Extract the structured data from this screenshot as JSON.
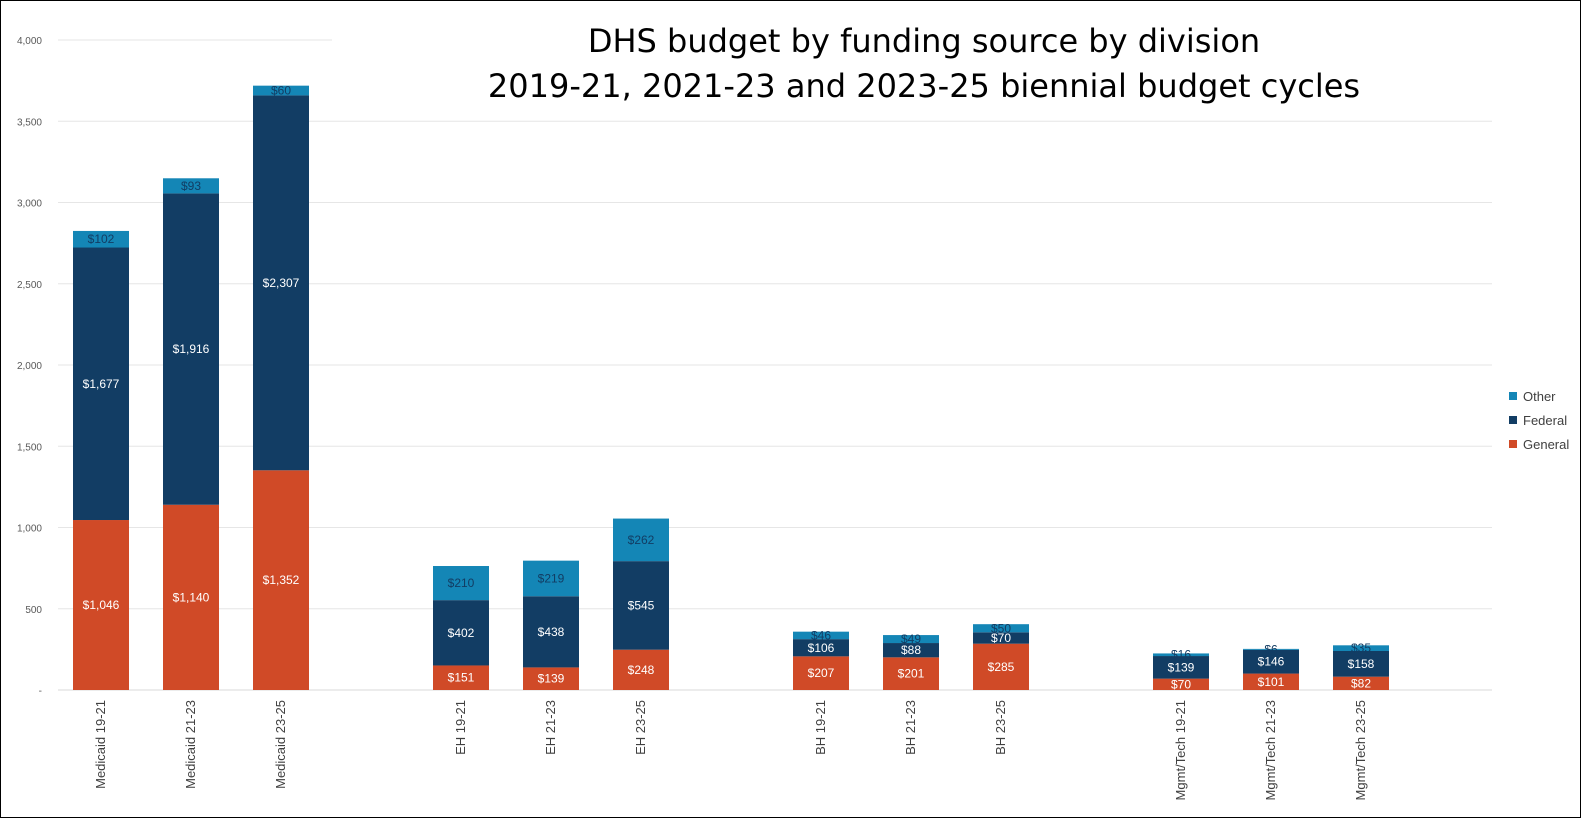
{
  "chart_data": {
    "type": "bar",
    "stacked": true,
    "title_lines": [
      "DHS budget by funding source by division",
      "2019-21, 2021-23 and 2023-25 biennial budget cycles"
    ],
    "xlabel": "",
    "ylabel": "",
    "ylim": [
      0,
      4000
    ],
    "y_ticks": [
      0,
      500,
      1000,
      1500,
      2000,
      2500,
      3000,
      3500,
      4000
    ],
    "y_tick_labels": [
      "-",
      "500",
      "1,000",
      "1,500",
      "2,000",
      "2,500",
      "3,000",
      "3,500",
      "4,000"
    ],
    "grid": true,
    "legend_position": "right",
    "groups": [
      {
        "categories": [
          "Medicaid 19-21",
          "Medicaid 21-23",
          "Medicaid 23-25"
        ]
      },
      {
        "categories": [
          "EH  19-21",
          "EH 21-23",
          "EH 23-25"
        ]
      },
      {
        "categories": [
          "BH 19-21",
          "BH 21-23",
          "BH 23-25"
        ]
      },
      {
        "categories": [
          "Mgmt/Tech 19-21",
          "Mgmt/Tech 21-23",
          "Mgmt/Tech 23-25"
        ]
      }
    ],
    "categories": [
      "Medicaid 19-21",
      "Medicaid 21-23",
      "Medicaid 23-25",
      "EH  19-21",
      "EH 21-23",
      "EH 23-25",
      "BH 19-21",
      "BH 21-23",
      "BH 23-25",
      "Mgmt/Tech 19-21",
      "Mgmt/Tech 21-23",
      "Mgmt/Tech 23-25"
    ],
    "series": [
      {
        "name": "General",
        "color": "#D04A27",
        "label_color": "#ffffff",
        "values": [
          1046,
          1140,
          1352,
          151,
          139,
          248,
          207,
          201,
          285,
          70,
          101,
          82
        ],
        "labels": [
          "$1,046",
          "$1,140",
          "$1,352",
          "$151",
          "$139",
          "$248",
          "$207",
          "$201",
          "$285",
          "$70",
          "$101",
          "$82"
        ]
      },
      {
        "name": "Federal",
        "color": "#123D64",
        "label_color": "#ffffff",
        "values": [
          1677,
          1916,
          2307,
          402,
          438,
          545,
          106,
          88,
          70,
          139,
          146,
          158
        ],
        "labels": [
          "$1,677",
          "$1,916",
          "$2,307",
          "$402",
          "$438",
          "$545",
          "$106",
          "$88",
          "$70",
          "$139",
          "$146",
          "$158"
        ]
      },
      {
        "name": "Other",
        "color": "#1486B6",
        "label_color": "#123D64",
        "values": [
          102,
          93,
          60,
          210,
          219,
          262,
          46,
          49,
          50,
          16,
          6,
          35
        ],
        "labels": [
          "$102",
          "$93",
          "$60",
          "$210",
          "$219",
          "$262",
          "$46",
          "$49",
          "$50",
          "$16",
          "$6",
          "$35"
        ]
      }
    ],
    "legend_order": [
      "Other",
      "Federal",
      "General"
    ]
  }
}
